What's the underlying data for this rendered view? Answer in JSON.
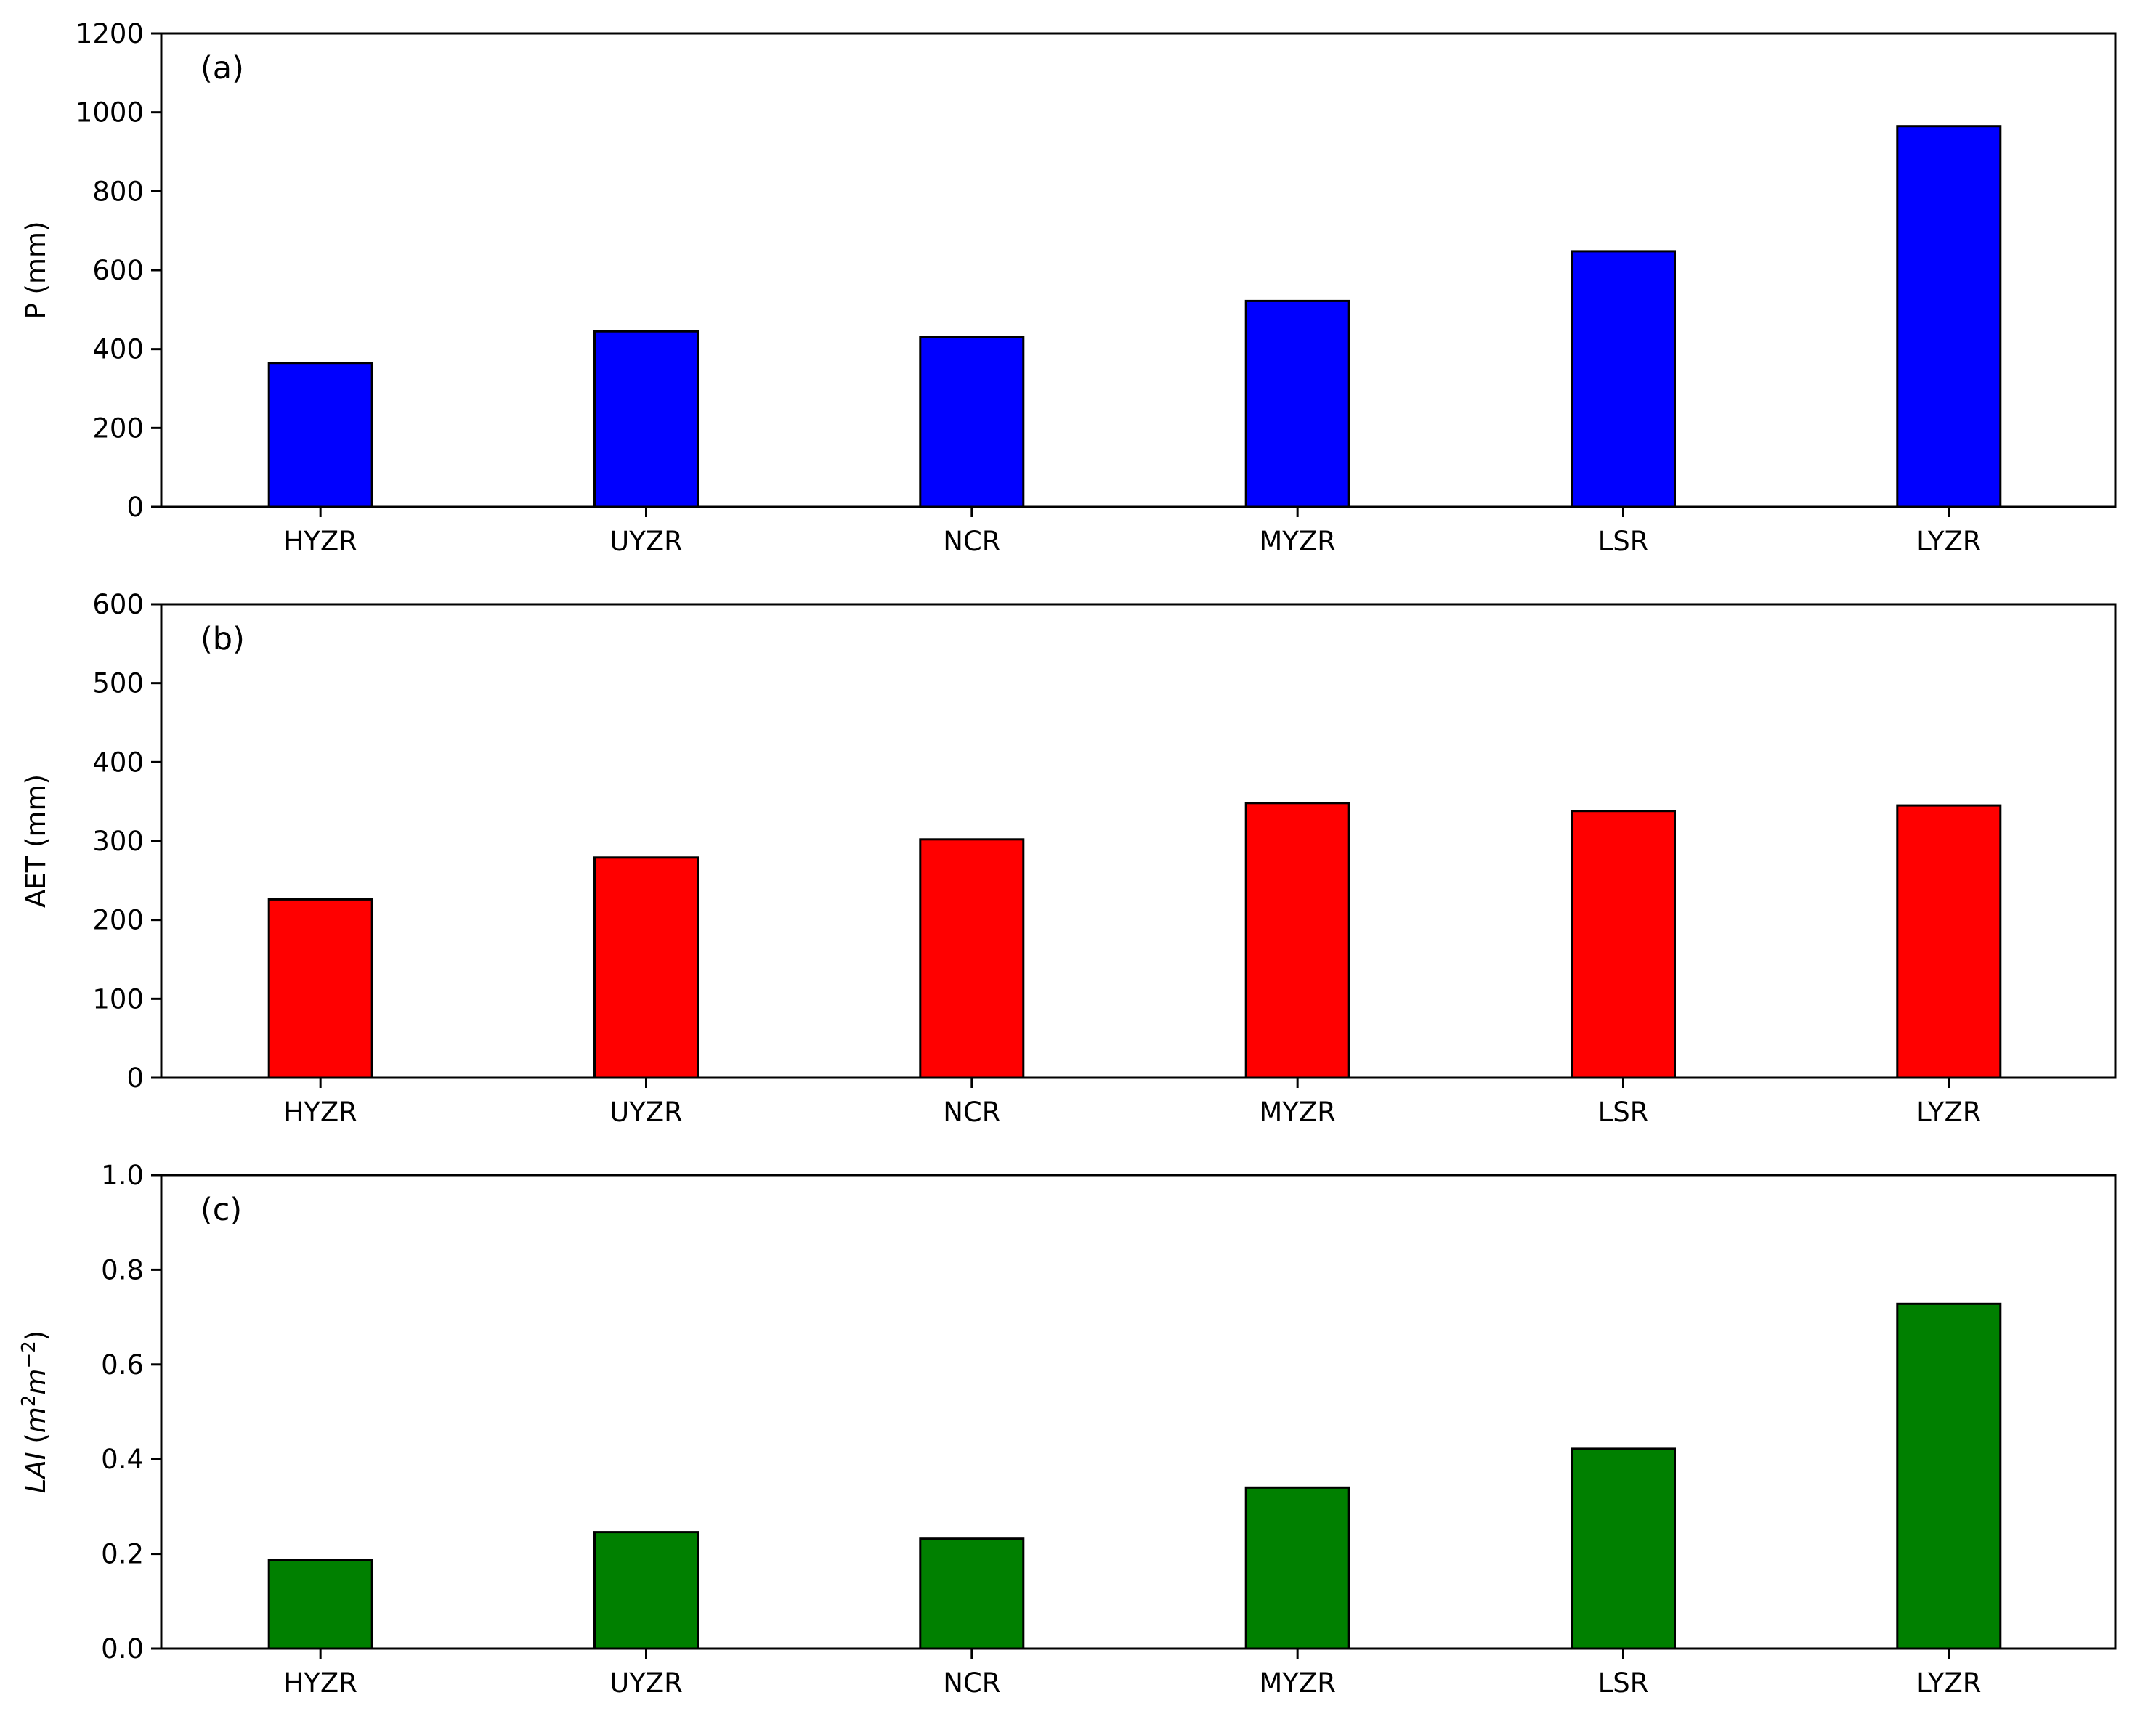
{
  "chart_data": [
    {
      "type": "bar",
      "annotation": "(a)",
      "ylabel": "P (mm)",
      "xlabel": "",
      "categories": [
        "HYZR",
        "UYZR",
        "NCR",
        "MYZR",
        "LSR",
        "LYZR"
      ],
      "values": [
        365,
        445,
        430,
        522,
        648,
        965
      ],
      "ylim": [
        0,
        1200
      ],
      "yticks": [
        0,
        200,
        400,
        600,
        800,
        1000,
        1200
      ],
      "ytick_labels": [
        "0",
        "200",
        "400",
        "600",
        "800",
        "1000",
        "1200"
      ],
      "color": "#0000ff",
      "edge_color": "#000000",
      "grid": false
    },
    {
      "type": "bar",
      "annotation": "(b)",
      "ylabel": "AET (mm)",
      "xlabel": "",
      "categories": [
        "HYZR",
        "UYZR",
        "NCR",
        "MYZR",
        "LSR",
        "LYZR"
      ],
      "values": [
        226,
        279,
        302,
        348,
        338,
        345
      ],
      "ylim": [
        0,
        600
      ],
      "yticks": [
        0,
        100,
        200,
        300,
        400,
        500,
        600
      ],
      "ytick_labels": [
        "0",
        "100",
        "200",
        "300",
        "400",
        "500",
        "600"
      ],
      "color": "#ff0000",
      "edge_color": "#000000",
      "grid": false
    },
    {
      "type": "bar",
      "annotation": "(c)",
      "ylabel": "LAI (m²m⁻²)",
      "xlabel": "",
      "categories": [
        "HYZR",
        "UYZR",
        "NCR",
        "MYZR",
        "LSR",
        "LYZR"
      ],
      "values": [
        0.187,
        0.246,
        0.232,
        0.34,
        0.422,
        0.728
      ],
      "ylim": [
        0,
        1.0
      ],
      "yticks": [
        0,
        0.2,
        0.4,
        0.6,
        0.8,
        1.0
      ],
      "ytick_labels": [
        "0.0",
        "0.2",
        "0.4",
        "0.6",
        "0.8",
        "1.0"
      ],
      "color": "#008000",
      "edge_color": "#000000",
      "grid": false
    }
  ]
}
